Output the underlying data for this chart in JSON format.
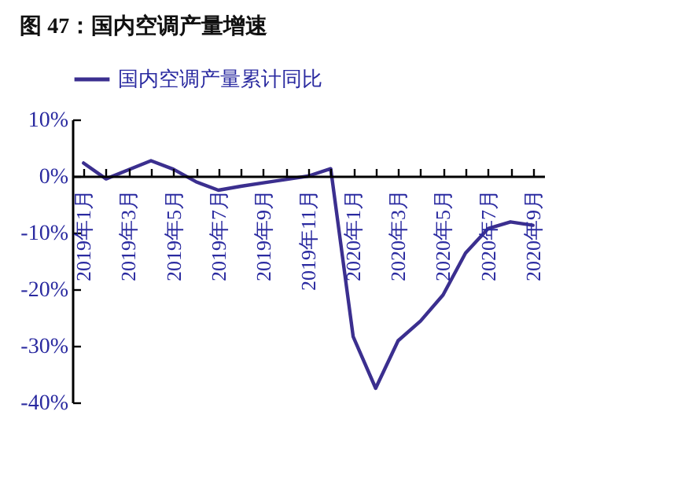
{
  "chart_data": {
    "type": "line",
    "title": "图 47：国内空调产量增速",
    "categories": [
      "2019年1月",
      null,
      "2019年3月",
      null,
      "2019年5月",
      null,
      "2019年7月",
      null,
      "2019年9月",
      null,
      "2019年11月",
      null,
      "2020年1月",
      null,
      "2020年3月",
      null,
      "2020年5月",
      null,
      "2020年7月",
      null,
      "2020年9月"
    ],
    "series": [
      {
        "name": "国内空调产量累计同比",
        "color": "#3b2f8f",
        "values": [
          2.3,
          -0.5,
          1.1,
          2.7,
          1.2,
          -1.0,
          -2.5,
          -1.8,
          -1.2,
          -0.6,
          0.0,
          1.3,
          -28.4,
          -37.5,
          -29.1,
          -25.6,
          -21.0,
          -13.6,
          -9.3,
          -8.1,
          -8.7
        ]
      }
    ],
    "ylim": [
      -40,
      10
    ],
    "yticks": [
      {
        "value": 10,
        "label": "10%"
      },
      {
        "value": 0,
        "label": "0%"
      },
      {
        "value": -10,
        "label": "-10%"
      },
      {
        "value": -20,
        "label": "-20%"
      },
      {
        "value": -30,
        "label": "-30%"
      },
      {
        "value": -40,
        "label": "-40%"
      }
    ],
    "grid": false,
    "legend": "top",
    "marker": "none",
    "line_style": "solid"
  }
}
